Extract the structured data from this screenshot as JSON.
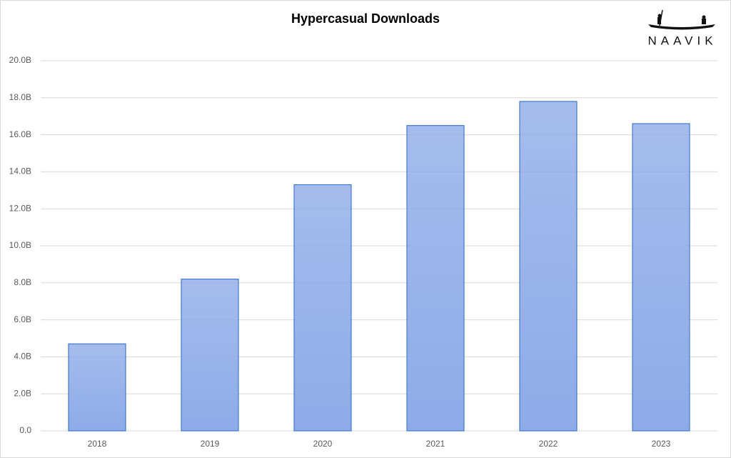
{
  "chart_data": {
    "type": "bar",
    "title": "Hypercasual Downloads",
    "logo": "NAAVIK",
    "categories": [
      "2018",
      "2019",
      "2020",
      "2021",
      "2022",
      "2023"
    ],
    "values": [
      4.7,
      8.2,
      13.3,
      16.5,
      17.8,
      16.6
    ],
    "color": "#8eabe8",
    "border_color": "#3f7bd1",
    "ylim": [
      0,
      20
    ],
    "yticks": [
      {
        "value": 0,
        "label": "0.0"
      },
      {
        "value": 2,
        "label": "2.0B"
      },
      {
        "value": 4,
        "label": "4.0B"
      },
      {
        "value": 6,
        "label": "6.0B"
      },
      {
        "value": 8,
        "label": "8.0B"
      },
      {
        "value": 10,
        "label": "10.0B"
      },
      {
        "value": 12,
        "label": "12.0B"
      },
      {
        "value": 14,
        "label": "14.0B"
      },
      {
        "value": 16,
        "label": "16.0B"
      },
      {
        "value": 18,
        "label": "18.0B"
      },
      {
        "value": 20,
        "label": "20.0B"
      }
    ],
    "grid": true
  }
}
